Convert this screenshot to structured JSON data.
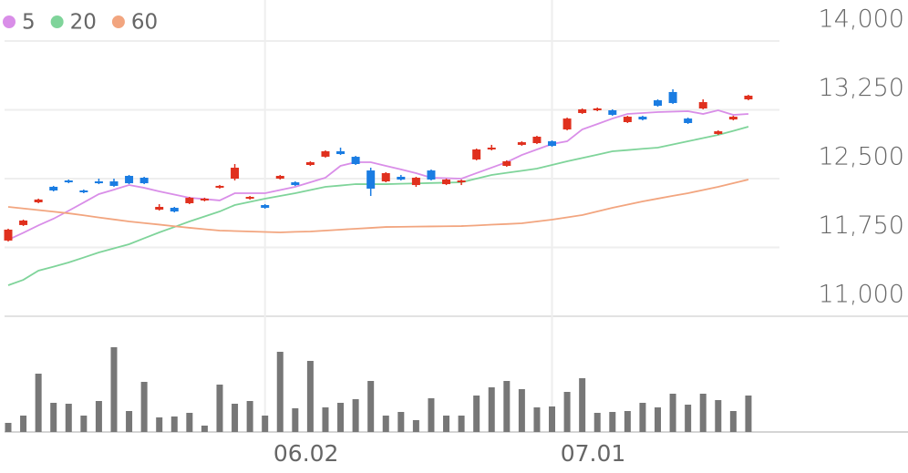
{
  "chart_data": {
    "type": "candlestick",
    "categories": [
      null,
      null,
      null,
      null,
      null,
      null,
      null,
      null,
      null,
      null,
      null,
      null,
      null,
      null,
      null,
      null,
      null,
      "06.02",
      null,
      null,
      null,
      null,
      null,
      null,
      null,
      null,
      null,
      null,
      null,
      null,
      null,
      null,
      null,
      null,
      null,
      null,
      "07.01",
      null,
      null,
      null,
      null,
      null,
      null,
      null,
      null,
      null,
      null,
      null,
      null,
      null
    ],
    "open": [
      11825,
      11994,
      12242,
      12411,
      12480,
      12371,
      12470,
      12470,
      12530,
      12510,
      12162,
      12182,
      12232,
      12262,
      12401,
      12500,
      12281,
      12212,
      12500,
      12460,
      12649,
      12739,
      12798,
      12738,
      12589,
      12470,
      12520,
      12430,
      12589,
      12440,
      12460,
      12709,
      12818,
      12639,
      12868,
      12887,
      12907,
      13036,
      13215,
      13245,
      13245,
      13116,
      13175,
      13354,
      13444,
      13155,
      13265,
      12987,
      13145,
      13364
    ],
    "close": [
      11944,
      12043,
      12272,
      12371,
      12460,
      12351,
      12450,
      12421,
      12450,
      12450,
      12192,
      12142,
      12291,
      12282,
      12421,
      12619,
      12301,
      12182,
      12530,
      12430,
      12679,
      12798,
      12768,
      12659,
      12391,
      12560,
      12490,
      12510,
      12490,
      12490,
      12480,
      12818,
      12838,
      12689,
      12897,
      12957,
      12857,
      13155,
      13255,
      13265,
      13195,
      13175,
      13145,
      13294,
      13324,
      13106,
      13334,
      13016,
      13175,
      13404
    ],
    "high": [
      11954,
      12053,
      12282,
      12421,
      12490,
      12381,
      12500,
      12500,
      12540,
      12520,
      12222,
      12192,
      12301,
      12292,
      12431,
      12659,
      12311,
      12222,
      12540,
      12470,
      12689,
      12808,
      12838,
      12748,
      12619,
      12570,
      12540,
      12520,
      12599,
      12500,
      12490,
      12828,
      12868,
      12699,
      12907,
      12967,
      12917,
      13165,
      13265,
      13275,
      13255,
      13185,
      13185,
      13364,
      13474,
      13165,
      13364,
      13026,
      13185,
      13414
    ],
    "low": [
      11815,
      11984,
      12232,
      12361,
      12450,
      12341,
      12440,
      12411,
      12440,
      12440,
      12152,
      12132,
      12222,
      12252,
      12391,
      12480,
      12271,
      12172,
      12490,
      12420,
      12639,
      12729,
      12758,
      12649,
      12311,
      12460,
      12480,
      12410,
      12480,
      12430,
      12430,
      12699,
      12808,
      12629,
      12858,
      12877,
      12847,
      13026,
      13205,
      13235,
      13185,
      13106,
      13135,
      13284,
      13314,
      13096,
      13255,
      12977,
      13135,
      13354
    ],
    "up_color": "#e0301e",
    "down_color": "#1a7ce2",
    "series": [
      {
        "name": "5",
        "color": "#d98ee8",
        "values": [
          11834,
          11910,
          11990,
          12063,
          12150,
          12240,
          12331,
          12380,
          12430,
          12400,
          12361,
          12326,
          12291,
          12277,
          12262,
          12341,
          12341,
          12341,
          12376,
          12411,
          12460,
          12510,
          12639,
          12679,
          12679,
          12639,
          12600,
          12560,
          12510,
          12505,
          12500,
          12560,
          12620,
          12679,
          12758,
          12818,
          12877,
          12907,
          13036,
          13095,
          13155,
          13205,
          13215,
          13225,
          13230,
          13235,
          13205,
          13245,
          13195,
          13205
        ]
      },
      {
        "name": "20",
        "color": "#7fd49a",
        "values": [
          11338,
          11397,
          11497,
          11540,
          11586,
          11640,
          11695,
          11740,
          11785,
          11850,
          11914,
          11973,
          12033,
          12088,
          12142,
          12212,
          12247,
          12281,
          12311,
          12341,
          12376,
          12411,
          12425,
          12440,
          12440,
          12440,
          12444,
          12448,
          12452,
          12456,
          12460,
          12500,
          12540,
          12563,
          12586,
          12609,
          12649,
          12689,
          12725,
          12761,
          12798,
          12811,
          12825,
          12838,
          12872,
          12907,
          12942,
          12977,
          13020,
          13066
        ]
      },
      {
        "name": "60",
        "color": "#f2a57f",
        "values": [
          12192,
          12175,
          12157,
          12140,
          12122,
          12100,
          12077,
          12055,
          12033,
          12016,
          11999,
          11981,
          11964,
          11949,
          11934,
          11929,
          11924,
          11919,
          11914,
          11920,
          11924,
          11934,
          11944,
          11954,
          11963,
          11973,
          11975,
          11977,
          11979,
          11981,
          11983,
          11990,
          11998,
          12005,
          12013,
          12033,
          12053,
          12078,
          12103,
          12142,
          12182,
          12217,
          12252,
          12282,
          12312,
          12341,
          12376,
          12411,
          12450,
          12490
        ]
      }
    ],
    "volume": {
      "color": "#777777",
      "ylim": [
        0,
        100
      ],
      "values": [
        10,
        18,
        64,
        32,
        31,
        18,
        34,
        93,
        23,
        55,
        16,
        17,
        21,
        7,
        52,
        31,
        34,
        18,
        88,
        26,
        78,
        27,
        32,
        36,
        56,
        18,
        22,
        13,
        37,
        18,
        18,
        40,
        49,
        56,
        47,
        27,
        28,
        44,
        59,
        21,
        22,
        23,
        32,
        27,
        42,
        30,
        42,
        35,
        23,
        40
      ]
    },
    "ylim": [
      11000,
      14000
    ],
    "yticks": [
      {
        "value": 14000,
        "label": "14,000"
      },
      {
        "value": 13250,
        "label": "13,250"
      },
      {
        "value": 12500,
        "label": "12,500"
      },
      {
        "value": 11750,
        "label": "11,750"
      },
      {
        "value": 11000,
        "label": "11,000"
      }
    ],
    "grid": true
  }
}
